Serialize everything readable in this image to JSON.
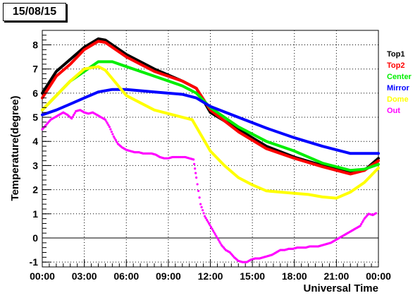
{
  "date_label": "15/08/15",
  "chart_data": {
    "type": "line",
    "xlabel": "Universal Time",
    "ylabel": "Temperature(degree)",
    "x_unit": "hours",
    "xlim": [
      0,
      24
    ],
    "ylim": [
      -1.2,
      8.6
    ],
    "x_ticks": [
      0,
      3,
      6,
      9,
      12,
      15,
      18,
      21,
      24
    ],
    "x_tick_labels": [
      "00:00",
      "03:00",
      "06:00",
      "09:00",
      "12:00",
      "15:00",
      "18:00",
      "21:00",
      "00:00"
    ],
    "y_ticks": [
      -1,
      0,
      1,
      2,
      3,
      4,
      5,
      6,
      7,
      8
    ],
    "y_tick_labels": [
      "-1",
      "0",
      "1",
      "2",
      "3",
      "4",
      "5",
      "6",
      "7",
      "8"
    ],
    "grid": {
      "x": true,
      "y": true,
      "style": "dotted"
    },
    "legend_position": "right",
    "series": [
      {
        "name": "Top1",
        "color": "#000000",
        "style": "line",
        "x": [
          0,
          1,
          2,
          3,
          4,
          4.5,
          6,
          8,
          10,
          11,
          12,
          14,
          16,
          18,
          20,
          22,
          23,
          24
        ],
        "y": [
          6.0,
          6.9,
          7.4,
          7.9,
          8.25,
          8.2,
          7.6,
          7.0,
          6.5,
          6.2,
          5.2,
          4.5,
          3.8,
          3.35,
          3.0,
          2.7,
          2.8,
          3.3
        ]
      },
      {
        "name": "Top2",
        "color": "#ff0000",
        "style": "line",
        "x": [
          0,
          1,
          2,
          3,
          4,
          4.5,
          6,
          8,
          10,
          11,
          12,
          14,
          16,
          18,
          20,
          22,
          23,
          24
        ],
        "y": [
          5.8,
          6.7,
          7.2,
          7.8,
          8.15,
          8.1,
          7.5,
          6.9,
          6.5,
          6.2,
          5.3,
          4.4,
          3.7,
          3.3,
          2.95,
          2.65,
          2.8,
          3.2
        ]
      },
      {
        "name": "Center",
        "color": "#00ee00",
        "style": "line",
        "x": [
          0,
          1,
          2,
          3,
          4,
          5,
          6,
          8,
          10,
          11,
          12,
          14,
          16,
          18,
          20,
          22,
          23,
          24
        ],
        "y": [
          5.3,
          5.9,
          6.5,
          6.9,
          7.3,
          7.3,
          7.1,
          6.7,
          6.3,
          6.0,
          5.4,
          4.6,
          4.0,
          3.6,
          3.1,
          2.8,
          2.85,
          3.05
        ]
      },
      {
        "name": "Mirror",
        "color": "#0000ff",
        "style": "line",
        "x": [
          0,
          1,
          2,
          3,
          4,
          5,
          6,
          8,
          10,
          11,
          12,
          14,
          16,
          18,
          20,
          22,
          23,
          24
        ],
        "y": [
          5.1,
          5.3,
          5.55,
          5.8,
          6.05,
          6.15,
          6.15,
          6.05,
          5.95,
          5.8,
          5.45,
          5.0,
          4.55,
          4.15,
          3.8,
          3.5,
          3.5,
          3.5
        ]
      },
      {
        "name": "Dome",
        "color": "#ffff00",
        "style": "line",
        "x": [
          0,
          1,
          2,
          3,
          4,
          4.5,
          6,
          8,
          10,
          10.7,
          12,
          13,
          14,
          15,
          16,
          18,
          19,
          20,
          21,
          22,
          23,
          24
        ],
        "y": [
          5.3,
          5.9,
          6.5,
          7.0,
          7.1,
          6.95,
          5.9,
          5.3,
          5.0,
          4.9,
          3.6,
          3.0,
          2.5,
          2.2,
          1.95,
          1.85,
          1.8,
          1.7,
          1.65,
          1.9,
          2.3,
          2.9
        ]
      },
      {
        "name": "Out",
        "color": "#ff00ff",
        "style": "scatter",
        "x": [
          0,
          0.3,
          0.6,
          0.9,
          1.2,
          1.5,
          1.8,
          2.1,
          2.4,
          2.7,
          3.0,
          3.3,
          3.6,
          3.9,
          4.2,
          4.5,
          4.8,
          5.1,
          5.4,
          5.7,
          6.0,
          6.3,
          6.6,
          6.9,
          7.2,
          7.5,
          7.8,
          8.1,
          8.4,
          8.7,
          9.0,
          9.3,
          9.6,
          9.9,
          10.2,
          10.5,
          10.8,
          11.0,
          11.3,
          11.6,
          11.9,
          12.2,
          12.5,
          12.8,
          13.1,
          13.4,
          13.7,
          14.0,
          14.3,
          14.6,
          14.9,
          15.2,
          15.5,
          15.8,
          16.1,
          16.4,
          16.7,
          17.0,
          17.3,
          17.6,
          17.9,
          18.2,
          18.5,
          18.8,
          19.1,
          19.4,
          19.7,
          20.0,
          20.3,
          20.6,
          20.9,
          21.2,
          21.5,
          21.8,
          22.1,
          22.4,
          22.7,
          23.0,
          23.3,
          23.6,
          23.9
        ],
        "y": [
          4.5,
          4.7,
          4.9,
          5.0,
          5.1,
          5.2,
          5.1,
          4.95,
          5.25,
          5.3,
          5.2,
          5.15,
          5.2,
          5.1,
          5.0,
          4.9,
          4.6,
          4.2,
          3.9,
          3.75,
          3.65,
          3.6,
          3.55,
          3.55,
          3.5,
          3.5,
          3.5,
          3.45,
          3.35,
          3.3,
          3.3,
          3.35,
          3.35,
          3.35,
          3.35,
          3.3,
          3.25,
          2.5,
          1.4,
          0.9,
          0.6,
          0.3,
          0.0,
          -0.3,
          -0.5,
          -0.6,
          -0.8,
          -0.95,
          -1.0,
          -1.0,
          -0.9,
          -0.85,
          -0.85,
          -0.8,
          -0.75,
          -0.7,
          -0.6,
          -0.5,
          -0.5,
          -0.45,
          -0.45,
          -0.4,
          -0.4,
          -0.4,
          -0.35,
          -0.35,
          -0.35,
          -0.3,
          -0.25,
          -0.2,
          -0.1,
          0.0,
          0.1,
          0.2,
          0.3,
          0.4,
          0.5,
          0.8,
          1.0,
          0.95,
          1.05
        ]
      }
    ]
  }
}
